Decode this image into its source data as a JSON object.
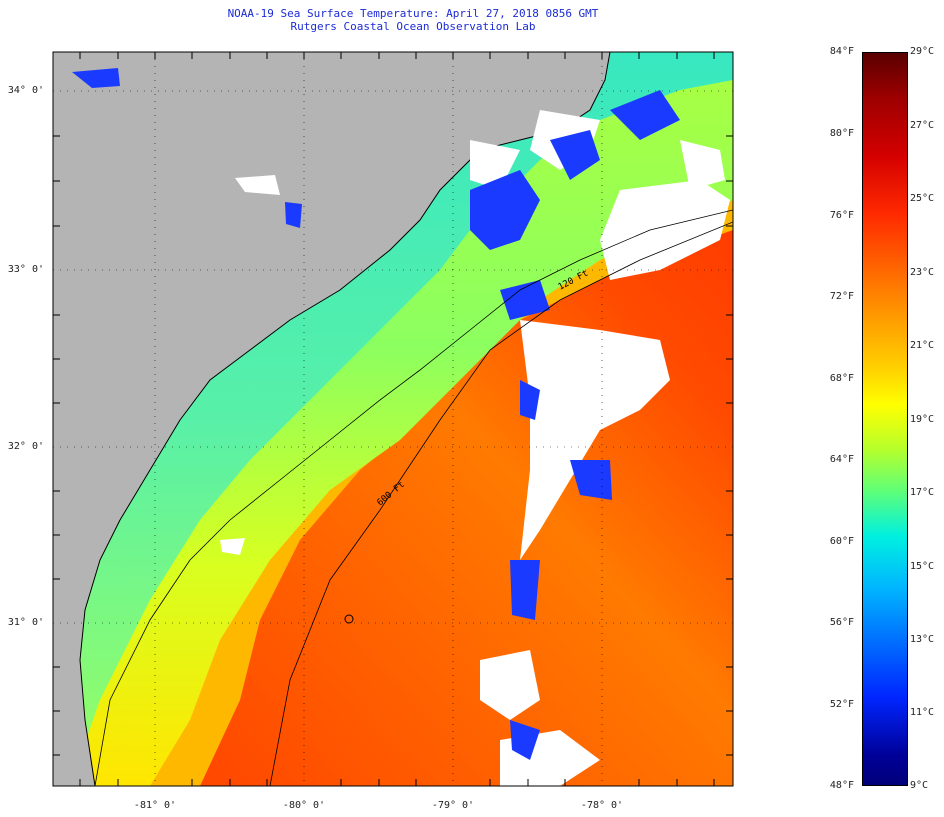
{
  "title": {
    "line1": "NOAA-19 Sea Surface Temperature:  April 27, 2018 0856 GMT",
    "line2": "Rutgers Coastal Ocean Observation Lab"
  },
  "map": {
    "latitude_labels": [
      "34° 0'",
      "33° 0'",
      "32° 0'",
      "31° 0'"
    ],
    "longitude_labels": [
      "-81° 0'",
      "-80° 0'",
      "-79° 0'",
      "-78° 0'"
    ],
    "isobath_labels": [
      "120 Ft",
      "600 Ft"
    ],
    "colors": {
      "land": "#b4b4b4",
      "cloud": "#ffffff",
      "coastline": "#000000"
    }
  },
  "colorbar": {
    "fahrenheit_labels": [
      "84°F",
      "80°F",
      "76°F",
      "72°F",
      "68°F",
      "64°F",
      "60°F",
      "56°F",
      "52°F",
      "48°F"
    ],
    "celsius_labels": [
      "29°C",
      "27°C",
      "25°C",
      "23°C",
      "21°C",
      "19°C",
      "17°C",
      "15°C",
      "13°C",
      "11°C",
      "9°C"
    ]
  }
}
